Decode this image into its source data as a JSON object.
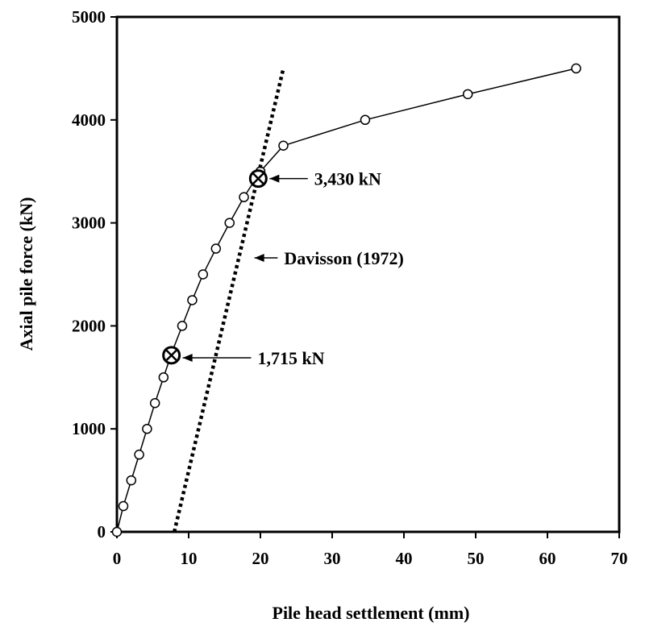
{
  "chart_data": {
    "type": "line",
    "title": "",
    "xlabel": "Pile head settlement (mm)",
    "ylabel": "Axial pile force (kN)",
    "xlim": [
      0,
      70
    ],
    "ylim": [
      0,
      5000
    ],
    "x_ticks": [
      "0",
      "10",
      "20",
      "30",
      "40",
      "50",
      "60",
      "70"
    ],
    "y_ticks": [
      "0",
      "1000",
      "2000",
      "3000",
      "4000",
      "5000"
    ],
    "grid": false,
    "series": [
      {
        "marker": "open-circle",
        "color": "#000000",
        "x": [
          0,
          0.9,
          2.0,
          3.1,
          4.2,
          5.3,
          6.5,
          7.7,
          9.1,
          10.5,
          12.0,
          13.8,
          15.7,
          17.7,
          20.0,
          23.2,
          34.6,
          48.9,
          64.0
        ],
        "y": [
          0,
          250,
          500,
          750,
          1000,
          1250,
          1500,
          1750,
          2000,
          2250,
          2500,
          2750,
          3000,
          3250,
          3500,
          3750,
          4000,
          4250,
          4500
        ]
      },
      {
        "line_style": "dotted",
        "color": "#000000",
        "x": [
          8.0,
          23.2
        ],
        "y": [
          0,
          4500
        ]
      }
    ],
    "markers": [
      {
        "x": 7.6,
        "y": 1715,
        "symbol": "circled-x"
      },
      {
        "x": 19.7,
        "y": 3430,
        "symbol": "circled-x"
      }
    ],
    "annotations": [
      {
        "text": "3,430 kN",
        "arrow_to": [
          19.7,
          3430
        ],
        "text_at": [
          27.5,
          3430
        ]
      },
      {
        "text": "Davisson (1972)",
        "arrow_to": [
          17.6,
          2660
        ],
        "text_at": [
          23.3,
          2660
        ]
      },
      {
        "text": "1,715 kN",
        "arrow_to": [
          7.6,
          1690
        ],
        "text_at": [
          19.6,
          1690
        ]
      }
    ]
  }
}
